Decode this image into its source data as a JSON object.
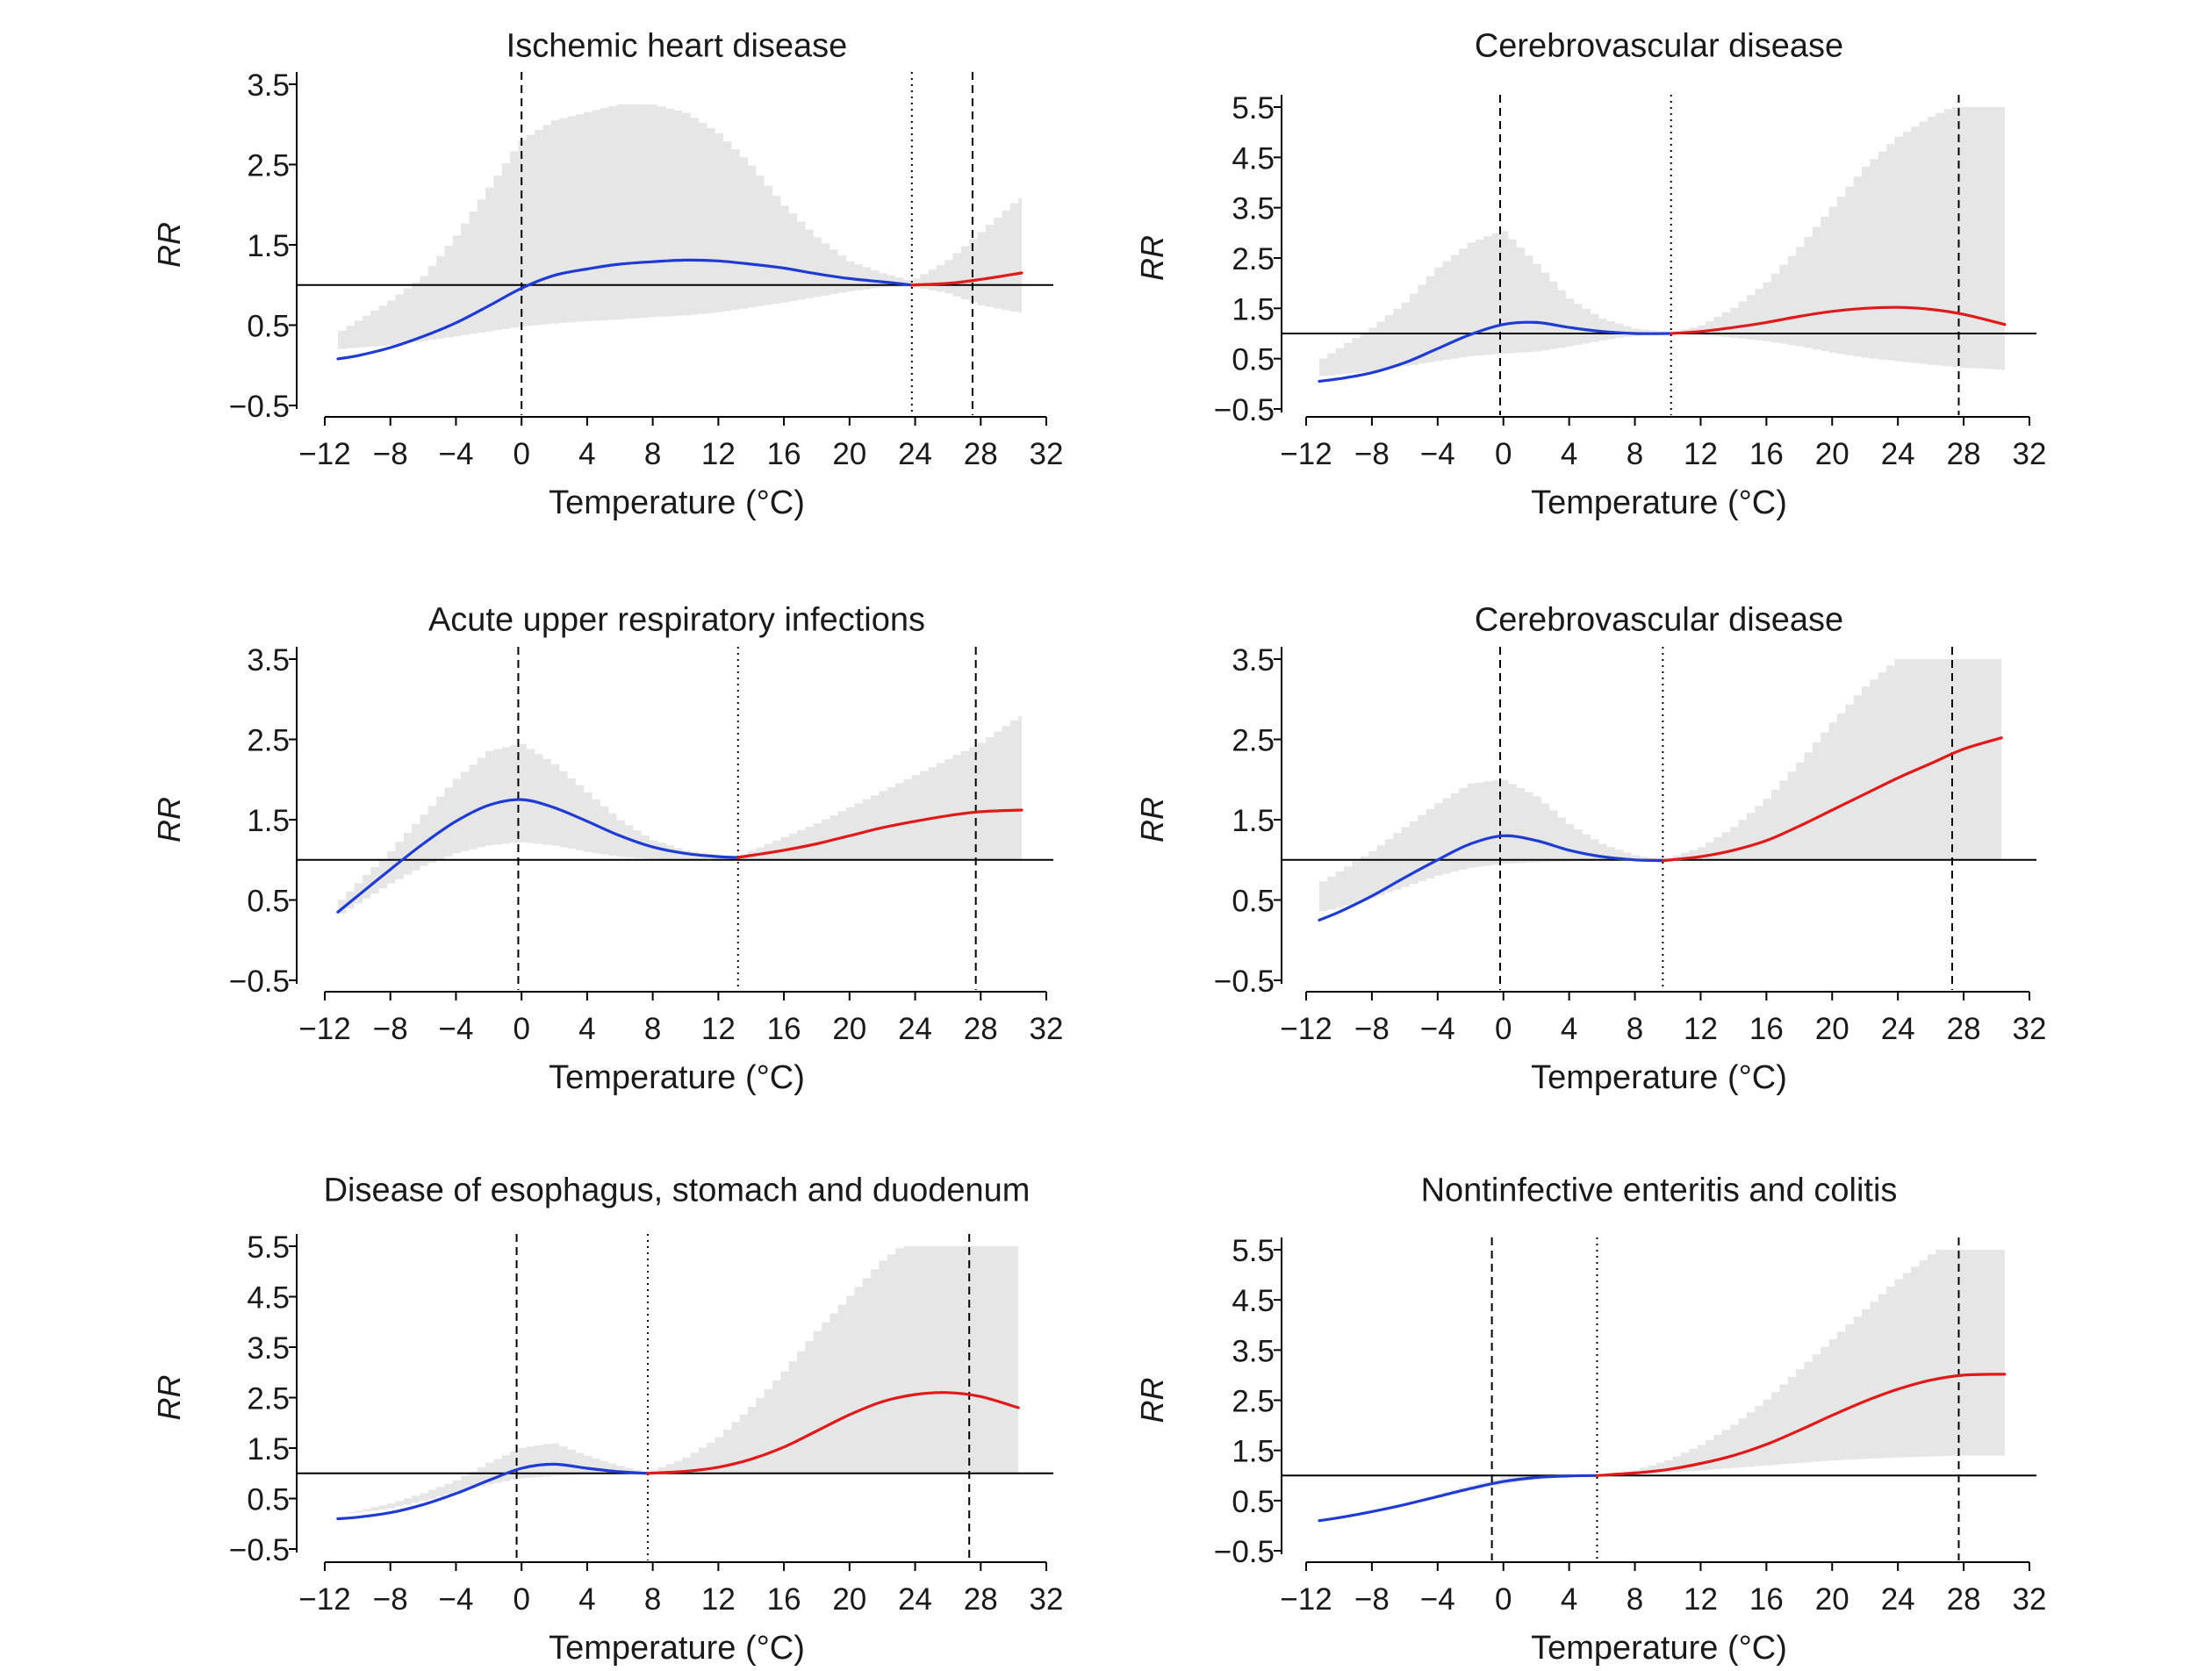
{
  "figure": {
    "x_ticks": [
      -12,
      -8,
      -4,
      0,
      4,
      8,
      12,
      16,
      20,
      24,
      28,
      32
    ],
    "x_tick_labels": [
      "−12",
      "−8",
      "−4",
      "0",
      "4",
      "8",
      "12",
      "16",
      "20",
      "24",
      "28",
      "32"
    ],
    "colors": {
      "cold": "#1f3bd1",
      "heat": "#e01a1a",
      "ci_band": "#e6e6e6",
      "reference": "#000000"
    }
  },
  "chart_data": [
    {
      "type": "line",
      "title": "Ischemic heart disease",
      "xlabel": "Temperature (°C)",
      "ylabel": "RR",
      "xlim": [
        -12,
        32
      ],
      "ylim": [
        -0.5,
        3.5
      ],
      "y_ticks": [
        -0.5,
        0.5,
        1.5,
        2.5,
        3.5
      ],
      "y_tick_labels": [
        "−0.5",
        "0.5",
        "1.5",
        "2.5",
        "3.5"
      ],
      "reference_rr": 1.0,
      "vlines": [
        {
          "x": 0,
          "style": "dashed"
        },
        {
          "x": 23.8,
          "style": "dotted"
        },
        {
          "x": 27.5,
          "style": "dashed"
        }
      ],
      "mmt": 23.8,
      "series": [
        {
          "x": [
            -11.2,
            -10,
            -8,
            -6,
            -4,
            -2,
            0,
            2,
            4,
            6,
            8,
            10,
            12,
            14,
            16,
            18,
            20,
            22,
            23.8,
            26,
            28,
            30.5
          ],
          "y": [
            0.08,
            0.12,
            0.22,
            0.36,
            0.53,
            0.74,
            0.96,
            1.12,
            1.2,
            1.26,
            1.29,
            1.31,
            1.3,
            1.26,
            1.21,
            1.14,
            1.08,
            1.04,
            1.0,
            1.02,
            1.07,
            1.15
          ],
          "lower": [
            0.2,
            0.22,
            0.25,
            0.3,
            0.36,
            0.42,
            0.48,
            0.52,
            0.55,
            0.57,
            0.6,
            0.62,
            0.66,
            0.72,
            0.78,
            0.85,
            0.92,
            0.97,
            0.98,
            0.9,
            0.75,
            0.65
          ],
          "upper": [
            0.4,
            0.55,
            0.8,
            1.1,
            1.6,
            2.2,
            2.8,
            3.05,
            3.15,
            3.25,
            3.25,
            3.15,
            2.9,
            2.5,
            2.0,
            1.6,
            1.3,
            1.15,
            1.05,
            1.3,
            1.65,
            2.1
          ]
        }
      ]
    },
    {
      "type": "line",
      "title": "Cerebrovascular disease",
      "xlabel": "Temperature (°C)",
      "ylabel": "RR",
      "xlim": [
        -12,
        32
      ],
      "ylim": [
        -0.5,
        5.5
      ],
      "y_ticks": [
        -0.5,
        0.5,
        1.5,
        2.5,
        3.5,
        4.5,
        5.5
      ],
      "y_tick_labels": [
        "−0.5",
        "0.5",
        "1.5",
        "2.5",
        "3.5",
        "4.5",
        "5.5"
      ],
      "reference_rr": 1.0,
      "vlines": [
        {
          "x": -0.2,
          "style": "dashed"
        },
        {
          "x": 10.2,
          "style": "dotted"
        },
        {
          "x": 27.7,
          "style": "dashed"
        }
      ],
      "mmt": 10.2,
      "series": [
        {
          "x": [
            -11.2,
            -10,
            -8,
            -6,
            -4,
            -2,
            0,
            2,
            4,
            6,
            8,
            10.2,
            12,
            14,
            16,
            18,
            20,
            22,
            24,
            26,
            28,
            30.5
          ],
          "y": [
            0.05,
            0.1,
            0.22,
            0.42,
            0.7,
            0.98,
            1.18,
            1.22,
            1.12,
            1.04,
            1.0,
            1.0,
            1.04,
            1.12,
            1.22,
            1.34,
            1.44,
            1.5,
            1.52,
            1.48,
            1.38,
            1.18
          ],
          "lower": [
            0.15,
            0.18,
            0.25,
            0.35,
            0.45,
            0.55,
            0.6,
            0.64,
            0.74,
            0.86,
            0.96,
            1.0,
            0.98,
            0.92,
            0.85,
            0.75,
            0.62,
            0.52,
            0.45,
            0.38,
            0.32,
            0.28
          ],
          "upper": [
            0.45,
            0.7,
            1.1,
            1.6,
            2.3,
            2.8,
            3.05,
            2.4,
            1.7,
            1.3,
            1.1,
            1.02,
            1.15,
            1.5,
            2.0,
            2.7,
            3.5,
            4.3,
            4.9,
            5.3,
            5.6,
            5.8
          ]
        }
      ]
    },
    {
      "type": "line",
      "title": "Acute upper respiratory infections",
      "xlabel": "Temperature (°C)",
      "ylabel": "RR",
      "xlim": [
        -12,
        32
      ],
      "ylim": [
        -0.5,
        3.5
      ],
      "y_ticks": [
        -0.5,
        0.5,
        1.5,
        2.5,
        3.5
      ],
      "y_tick_labels": [
        "−0.5",
        "0.5",
        "1.5",
        "2.5",
        "3.5"
      ],
      "reference_rr": 1.0,
      "vlines": [
        {
          "x": -0.2,
          "style": "dashed"
        },
        {
          "x": 13.2,
          "style": "dotted"
        },
        {
          "x": 27.7,
          "style": "dashed"
        }
      ],
      "mmt": 13.2,
      "series": [
        {
          "x": [
            -11.2,
            -10,
            -8,
            -6,
            -4,
            -2,
            0,
            2,
            4,
            6,
            8,
            10,
            12,
            13.2,
            16,
            18,
            20,
            22,
            24,
            26,
            28,
            30.5
          ],
          "y": [
            0.35,
            0.55,
            0.88,
            1.2,
            1.48,
            1.68,
            1.75,
            1.65,
            1.48,
            1.3,
            1.16,
            1.08,
            1.04,
            1.03,
            1.12,
            1.2,
            1.3,
            1.4,
            1.48,
            1.55,
            1.6,
            1.62
          ],
          "lower": [
            0.3,
            0.45,
            0.7,
            0.92,
            1.08,
            1.18,
            1.22,
            1.18,
            1.1,
            1.04,
            1.01,
            1.0,
            1.0,
            1.0,
            1.0,
            1.0,
            1.0,
            1.0,
            1.0,
            1.0,
            1.0,
            1.0
          ],
          "upper": [
            0.45,
            0.7,
            1.1,
            1.55,
            2.0,
            2.35,
            2.45,
            2.2,
            1.85,
            1.5,
            1.25,
            1.12,
            1.06,
            1.04,
            1.28,
            1.45,
            1.65,
            1.85,
            2.05,
            2.25,
            2.45,
            2.8
          ]
        }
      ]
    },
    {
      "type": "line",
      "title": "Cerebrovascular disease",
      "xlabel": "Temperature (°C)",
      "ylabel": "RR",
      "xlim": [
        -12,
        32
      ],
      "ylim": [
        -0.5,
        3.5
      ],
      "y_ticks": [
        -0.5,
        0.5,
        1.5,
        2.5,
        3.5
      ],
      "y_tick_labels": [
        "−0.5",
        "0.5",
        "1.5",
        "2.5",
        "3.5"
      ],
      "reference_rr": 1.0,
      "vlines": [
        {
          "x": -0.2,
          "style": "dashed"
        },
        {
          "x": 9.7,
          "style": "dotted"
        },
        {
          "x": 27.3,
          "style": "dashed"
        }
      ],
      "mmt": 9.7,
      "series": [
        {
          "x": [
            -11.2,
            -10,
            -8,
            -6,
            -4,
            -2,
            0,
            2,
            4,
            6,
            8,
            9.7,
            12,
            14,
            16,
            18,
            20,
            22,
            24,
            26,
            28,
            30.3
          ],
          "y": [
            0.25,
            0.35,
            0.55,
            0.78,
            1.0,
            1.2,
            1.3,
            1.24,
            1.12,
            1.04,
            1.0,
            0.99,
            1.04,
            1.12,
            1.24,
            1.42,
            1.62,
            1.82,
            2.02,
            2.2,
            2.38,
            2.52
          ],
          "lower": [
            0.35,
            0.4,
            0.52,
            0.66,
            0.8,
            0.9,
            0.95,
            0.97,
            0.98,
            0.99,
            0.99,
            0.99,
            0.99,
            0.99,
            0.99,
            0.99,
            0.99,
            0.99,
            0.99,
            0.99,
            0.99,
            0.99
          ],
          "upper": [
            0.7,
            0.85,
            1.1,
            1.4,
            1.7,
            1.95,
            2.0,
            1.8,
            1.45,
            1.2,
            1.06,
            1.0,
            1.15,
            1.4,
            1.75,
            2.2,
            2.7,
            3.15,
            3.5,
            3.5,
            3.5,
            3.5
          ]
        }
      ]
    },
    {
      "type": "line",
      "title": "Disease of esophagus, stomach and duodenum",
      "xlabel": "Temperature (°C)",
      "ylabel": "RR",
      "xlim": [
        -12,
        32
      ],
      "ylim": [
        -0.5,
        5.5
      ],
      "y_ticks": [
        -0.5,
        0.5,
        1.5,
        2.5,
        3.5,
        4.5,
        5.5
      ],
      "y_tick_labels": [
        "−0.5",
        "0.5",
        "1.5",
        "2.5",
        "3.5",
        "4.5",
        "5.5"
      ],
      "reference_rr": 1.0,
      "vlines": [
        {
          "x": -0.3,
          "style": "dashed"
        },
        {
          "x": 7.7,
          "style": "dotted"
        },
        {
          "x": 27.3,
          "style": "dashed"
        }
      ],
      "mmt": 7.7,
      "series": [
        {
          "x": [
            -11.2,
            -10,
            -8,
            -6,
            -4,
            -2,
            0,
            2,
            4,
            6,
            7.7,
            10,
            12,
            14,
            16,
            18,
            20,
            22,
            24,
            26,
            28,
            30.3
          ],
          "y": [
            0.1,
            0.13,
            0.22,
            0.38,
            0.6,
            0.86,
            1.1,
            1.18,
            1.1,
            1.03,
            1.0,
            1.04,
            1.12,
            1.28,
            1.52,
            1.84,
            2.16,
            2.42,
            2.56,
            2.6,
            2.52,
            2.3
          ],
          "lower": [
            0.2,
            0.22,
            0.3,
            0.45,
            0.62,
            0.78,
            0.9,
            0.95,
            0.98,
            0.99,
            1.0,
            1.0,
            1.0,
            1.0,
            1.0,
            1.0,
            1.0,
            1.0,
            1.0,
            1.0,
            1.0,
            1.0
          ],
          "upper": [
            0.2,
            0.25,
            0.4,
            0.6,
            0.85,
            1.2,
            1.5,
            1.6,
            1.35,
            1.15,
            1.02,
            1.3,
            1.7,
            2.3,
            3.0,
            3.8,
            4.5,
            5.2,
            5.7,
            6.1,
            6.2,
            6.2
          ]
        }
      ]
    },
    {
      "type": "line",
      "title": "Nontinfective enteritis and colitis",
      "xlabel": "Temperature (°C)",
      "ylabel": "RR",
      "xlim": [
        -12,
        32
      ],
      "ylim": [
        -0.5,
        5.5
      ],
      "y_ticks": [
        -0.5,
        0.5,
        1.5,
        2.5,
        3.5,
        4.5,
        5.5
      ],
      "y_tick_labels": [
        "−0.5",
        "0.5",
        "1.5",
        "2.5",
        "3.5",
        "4.5",
        "5.5"
      ],
      "reference_rr": 1.0,
      "vlines": [
        {
          "x": -0.7,
          "style": "dashed"
        },
        {
          "x": 5.7,
          "style": "dotted"
        },
        {
          "x": 27.7,
          "style": "dashed"
        }
      ],
      "mmt": 5.7,
      "series": [
        {
          "x": [
            -11.2,
            -10,
            -8,
            -6,
            -4,
            -2,
            0,
            2,
            4,
            5.7,
            8,
            10,
            12,
            14,
            16,
            18,
            20,
            22,
            24,
            26,
            28,
            30.5
          ],
          "y": [
            0.1,
            0.16,
            0.28,
            0.42,
            0.58,
            0.74,
            0.88,
            0.96,
            0.99,
            1.0,
            1.05,
            1.12,
            1.24,
            1.4,
            1.62,
            1.9,
            2.2,
            2.48,
            2.72,
            2.9,
            3.0,
            3.02
          ],
          "lower": [
            0.1,
            0.16,
            0.28,
            0.42,
            0.56,
            0.7,
            0.82,
            0.92,
            0.98,
            1.0,
            1.02,
            1.06,
            1.1,
            1.15,
            1.2,
            1.25,
            1.3,
            1.33,
            1.36,
            1.38,
            1.4,
            1.4
          ],
          "upper": [
            0.1,
            0.16,
            0.28,
            0.42,
            0.62,
            0.8,
            0.96,
            1.02,
            1.02,
            1.0,
            1.1,
            1.3,
            1.6,
            2.0,
            2.5,
            3.1,
            3.7,
            4.3,
            4.9,
            5.4,
            5.8,
            6.2
          ]
        }
      ]
    }
  ]
}
